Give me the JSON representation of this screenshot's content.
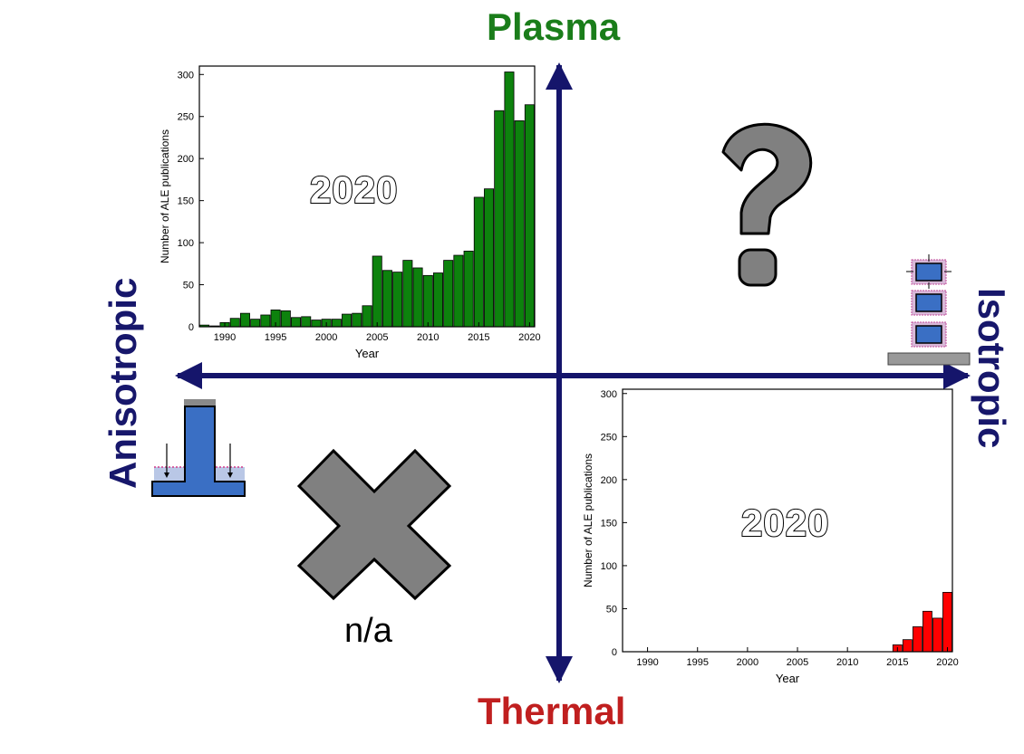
{
  "axes": {
    "top": "Plasma",
    "bottom": "Thermal",
    "left": "Anisotropic",
    "right": "Isotropic"
  },
  "quadrants": {
    "top_left": {
      "stamp": "2020"
    },
    "top_right": {
      "icon": "question-mark-icon"
    },
    "bottom_left": {
      "icon": "cross-icon",
      "label": "n/a"
    },
    "bottom_right": {
      "stamp": "2020"
    }
  },
  "colors": {
    "axis_arrow": "#15156b",
    "plasma": "#1a7d1a",
    "thermal": "#c01f1f",
    "plasma_bar": "#0d820d",
    "thermal_bar": "#ff0000",
    "icon_gray": "#808080",
    "substrate_blue": "#3a6fc4"
  },
  "chart_data": [
    {
      "type": "bar",
      "name": "plasma",
      "xlabel": "Year",
      "ylabel": "Number of ALE publications",
      "xlim": [
        1987.5,
        2020.5
      ],
      "ylim": [
        0,
        310
      ],
      "yticks": [
        0,
        50,
        100,
        150,
        200,
        250,
        300
      ],
      "xticks": [
        1990,
        1995,
        2000,
        2005,
        2010,
        2015,
        2020
      ],
      "x": [
        1988,
        1989,
        1990,
        1991,
        1992,
        1993,
        1994,
        1995,
        1996,
        1997,
        1998,
        1999,
        2000,
        2001,
        2002,
        2003,
        2004,
        2005,
        2006,
        2007,
        2008,
        2009,
        2010,
        2011,
        2012,
        2013,
        2014,
        2015,
        2016,
        2017,
        2018,
        2019,
        2020
      ],
      "values": [
        2,
        1,
        5,
        10,
        16,
        9,
        14,
        20,
        19,
        11,
        12,
        8,
        9,
        9,
        15,
        16,
        25,
        84,
        67,
        65,
        79,
        70,
        61,
        64,
        79,
        85,
        90,
        154,
        164,
        257,
        303,
        245,
        264
      ]
    },
    {
      "type": "bar",
      "name": "thermal",
      "xlabel": "Year",
      "ylabel": "Number of ALE publications",
      "xlim": [
        1987.5,
        2020.5
      ],
      "ylim": [
        0,
        305
      ],
      "yticks": [
        0,
        50,
        100,
        150,
        200,
        250,
        300
      ],
      "xticks": [
        1990,
        1995,
        2000,
        2005,
        2010,
        2015,
        2020
      ],
      "x": [
        2015,
        2016,
        2017,
        2018,
        2019,
        2020
      ],
      "values": [
        8,
        14,
        29,
        47,
        39,
        69
      ]
    }
  ]
}
